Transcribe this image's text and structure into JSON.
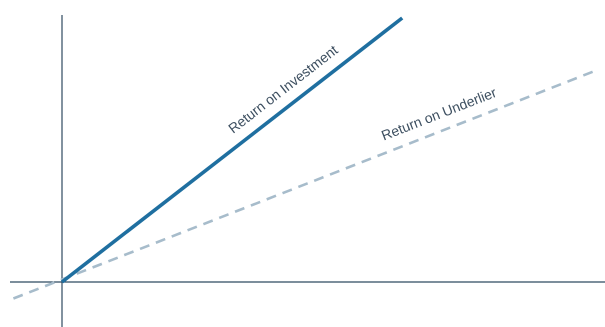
{
  "chart_data": {
    "type": "line",
    "title": "",
    "xlabel": "",
    "ylabel": "",
    "grid": false,
    "legend": "none",
    "xlim": [
      -1,
      10
    ],
    "ylim": [
      -1,
      5
    ],
    "series": [
      {
        "name": "Return on Investment",
        "style": "solid",
        "color": "#1f6fa0",
        "x": [
          0,
          6.3
        ],
        "y": [
          0,
          4.8
        ]
      },
      {
        "name": "Return on Underlier",
        "style": "dashed",
        "color": "#a7bccb",
        "x": [
          -0.9,
          9.9
        ],
        "y": [
          -0.3,
          3.85
        ]
      }
    ],
    "axes_color": "#2f4a60"
  }
}
